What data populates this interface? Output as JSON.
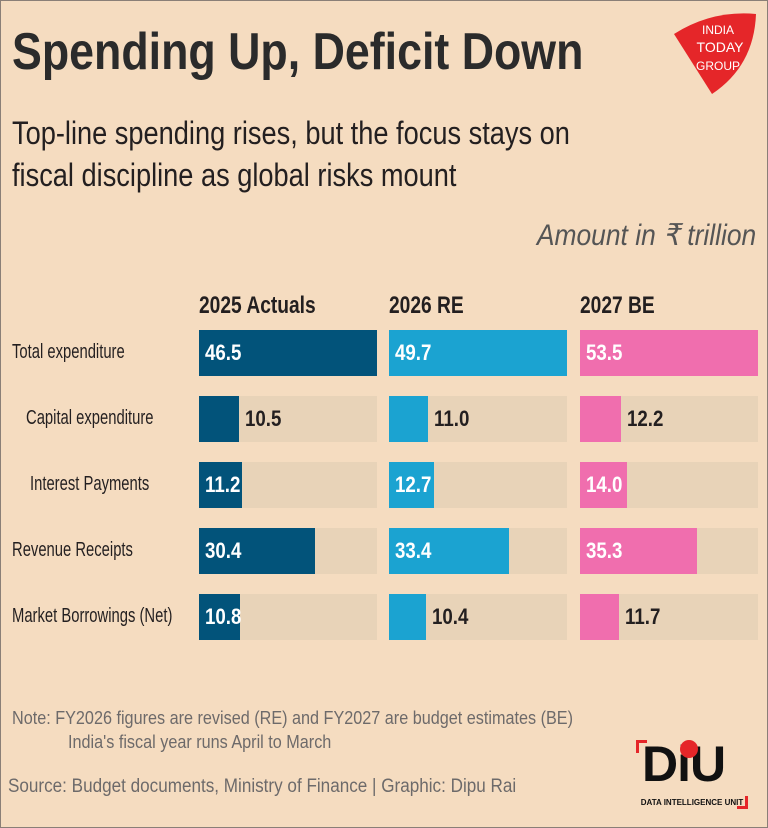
{
  "header": {
    "title": "Spending Up, Deficit Down",
    "subtitle_line1": "Top-line spending rises, but the focus stays on",
    "subtitle_line2": "fiscal discipline as global risks mount",
    "unit": "Amount in ₹ trillion",
    "logo_text": "INDIA TODAY GROUP"
  },
  "chart_data": {
    "type": "bar",
    "orientation": "horizontal",
    "title": "Spending Up, Deficit Down",
    "unit": "Amount in ₹ trillion",
    "categories": [
      "Total expenditure",
      "Capital expenditure",
      "Interest Payments",
      "Revenue Receipts",
      "Market Borrowings (Net)"
    ],
    "series": [
      {
        "name": "2025 Actuals",
        "color": "#02537a",
        "values": [
          46.5,
          10.5,
          11.2,
          30.4,
          10.8
        ]
      },
      {
        "name": "2026 RE",
        "color": "#1ba3d1",
        "values": [
          49.7,
          11.0,
          12.7,
          33.4,
          10.4
        ]
      },
      {
        "name": "2027 BE",
        "color": "#f06eae",
        "values": [
          53.5,
          12.2,
          14.0,
          35.3,
          11.7
        ]
      }
    ],
    "scale_note": "each series scaled to its own Total expenditure",
    "track_color": "#e8d3b8"
  },
  "footer": {
    "note_line1": "Note: FY2026 figures are revised (RE) and FY2027 are budget estimates (BE)",
    "note_line2": "India's fiscal year runs April to March",
    "source": "Source: Budget documents, Ministry of Finance | Graphic: Dipu Rai",
    "diu_logo_text": "DiU",
    "diu_logo_sub": "DATA INTELLIGENCE UNIT"
  }
}
